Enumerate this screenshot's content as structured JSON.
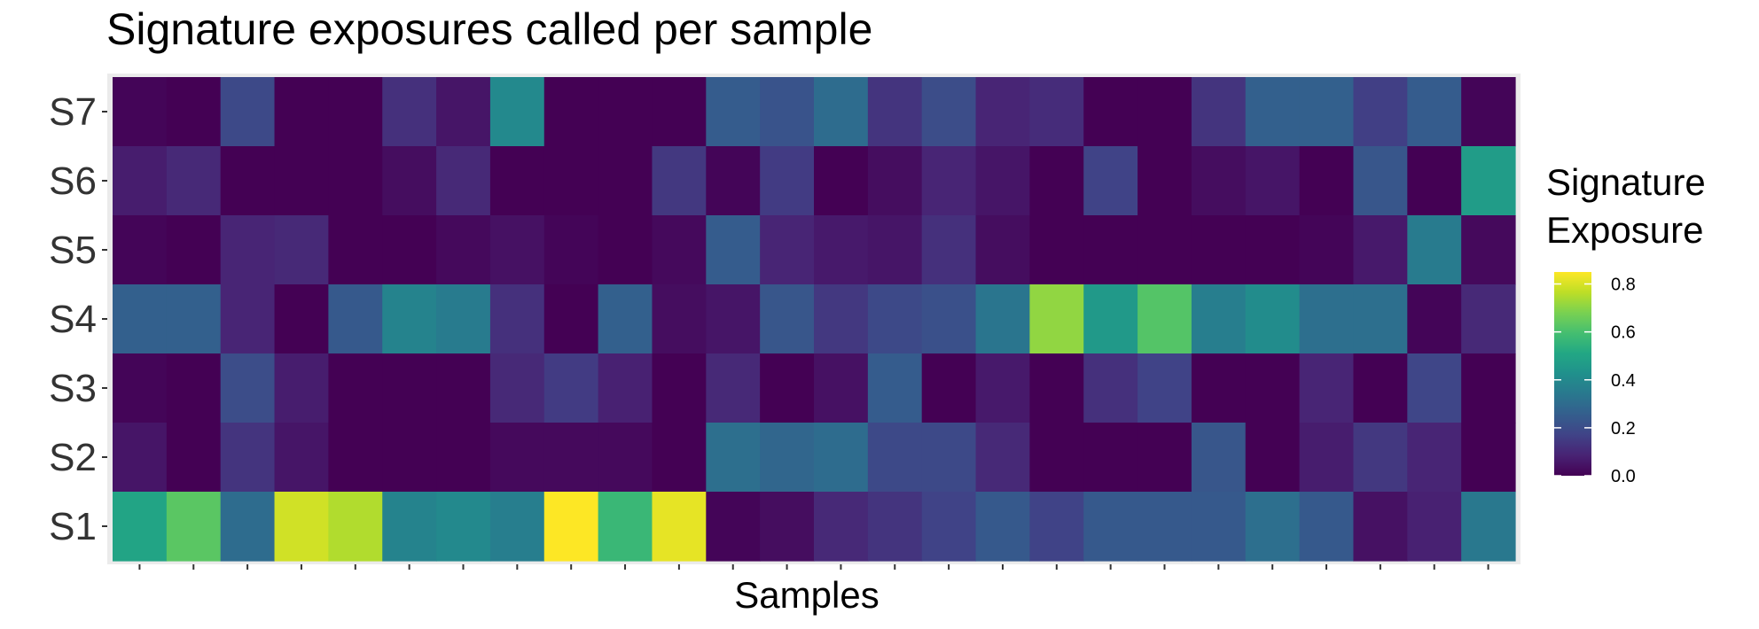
{
  "chart_data": {
    "type": "heatmap",
    "title": "Signature exposures called per sample",
    "xlabel": "Samples",
    "ylabel": "",
    "rows": [
      "S7",
      "S6",
      "S5",
      "S4",
      "S3",
      "S2",
      "S1"
    ],
    "n_columns": 26,
    "colorscale": "viridis",
    "color_range": [
      0,
      0.85
    ],
    "legend": {
      "title_lines": [
        "Signature",
        "Exposure"
      ],
      "ticks": [
        0.8,
        0.6,
        0.4,
        0.2,
        0.0
      ],
      "tick_labels": [
        "0.8",
        "0.6",
        "0.4",
        "0.2",
        "0.0"
      ],
      "position": "right"
    },
    "grid": true,
    "values": [
      [
        0.01,
        0.0,
        0.19,
        0.0,
        0.0,
        0.12,
        0.05,
        0.4,
        0.0,
        0.0,
        0.0,
        0.25,
        0.22,
        0.3,
        0.13,
        0.2,
        0.09,
        0.11,
        0.0,
        0.0,
        0.13,
        0.26,
        0.26,
        0.16,
        0.25,
        0.01
      ],
      [
        0.07,
        0.1,
        0.0,
        0.0,
        0.0,
        0.03,
        0.1,
        0.0,
        0.0,
        0.0,
        0.14,
        0.01,
        0.15,
        0.0,
        0.03,
        0.09,
        0.05,
        0.0,
        0.17,
        0.0,
        0.03,
        0.05,
        0.0,
        0.23,
        0.0,
        0.47
      ],
      [
        0.01,
        0.0,
        0.09,
        0.1,
        0.0,
        0.0,
        0.02,
        0.04,
        0.01,
        0.0,
        0.02,
        0.25,
        0.09,
        0.06,
        0.05,
        0.12,
        0.03,
        0.0,
        0.0,
        0.0,
        0.0,
        0.0,
        0.01,
        0.06,
        0.35,
        0.02
      ],
      [
        0.26,
        0.26,
        0.09,
        0.0,
        0.24,
        0.38,
        0.35,
        0.12,
        0.0,
        0.26,
        0.03,
        0.05,
        0.23,
        0.14,
        0.19,
        0.21,
        0.33,
        0.71,
        0.46,
        0.62,
        0.36,
        0.41,
        0.31,
        0.31,
        0.01,
        0.1
      ],
      [
        0.01,
        0.0,
        0.2,
        0.07,
        0.0,
        0.0,
        0.0,
        0.1,
        0.15,
        0.08,
        0.0,
        0.1,
        0.0,
        0.04,
        0.25,
        0.0,
        0.06,
        0.0,
        0.12,
        0.17,
        0.0,
        0.0,
        0.09,
        0.0,
        0.18,
        0.0
      ],
      [
        0.05,
        0.0,
        0.13,
        0.05,
        0.0,
        0.0,
        0.0,
        0.02,
        0.02,
        0.02,
        0.0,
        0.31,
        0.28,
        0.3,
        0.19,
        0.19,
        0.1,
        0.0,
        0.0,
        0.0,
        0.23,
        0.0,
        0.07,
        0.14,
        0.09,
        0.0
      ],
      [
        0.5,
        0.63,
        0.3,
        0.79,
        0.75,
        0.38,
        0.4,
        0.36,
        0.85,
        0.57,
        0.82,
        0.01,
        0.03,
        0.1,
        0.13,
        0.17,
        0.24,
        0.17,
        0.24,
        0.24,
        0.24,
        0.31,
        0.24,
        0.04,
        0.08,
        0.34
      ]
    ]
  }
}
